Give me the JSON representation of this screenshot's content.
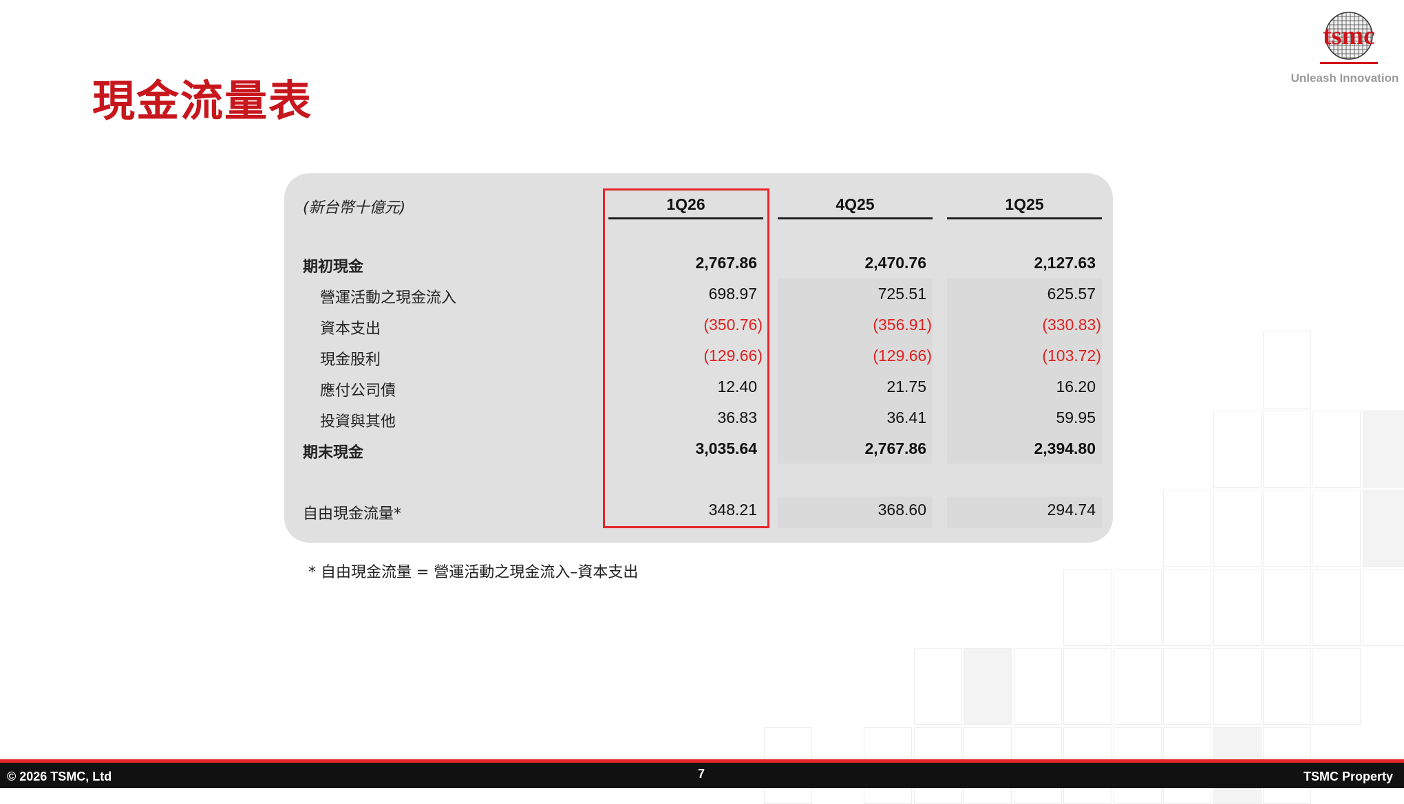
{
  "title": "現金流量表",
  "logo": {
    "text": "tsmc",
    "tagline": "Unleash Innovation"
  },
  "table": {
    "unit": "(新台幣十億元)",
    "columns": [
      "1Q26",
      "4Q25",
      "1Q25"
    ],
    "highlighted_column": "1Q26",
    "rows": [
      {
        "label": "期初現金",
        "bold": true,
        "values": [
          "2,767.86",
          "2,470.76",
          "2,127.63"
        ]
      },
      {
        "label": "營運活動之現金流入",
        "values": [
          "698.97",
          "725.51",
          "625.57"
        ]
      },
      {
        "label": "資本支出",
        "negative": true,
        "values": [
          "(350.76)",
          "(356.91)",
          "(330.83)"
        ]
      },
      {
        "label": "現金股利",
        "negative": true,
        "values": [
          "(129.66)",
          "(129.66)",
          "(103.72)"
        ]
      },
      {
        "label": "應付公司債",
        "values": [
          "12.40",
          "21.75",
          "16.20"
        ]
      },
      {
        "label": "投資與其他",
        "values": [
          "36.83",
          "36.41",
          "59.95"
        ]
      },
      {
        "label": "期末現金",
        "bold": true,
        "values": [
          "3,035.64",
          "2,767.86",
          "2,394.80"
        ]
      },
      {
        "label": "自由現金流量*",
        "values": [
          "348.21",
          "368.60",
          "294.74"
        ]
      }
    ]
  },
  "footnote": "* 自由現金流量 = 營運活動之現金流入–資本支出",
  "footer": {
    "copyright": "© 2026 TSMC, Ltd",
    "page": "7",
    "property": "TSMC Property"
  },
  "colors": {
    "accent": "#c8161d",
    "negative": "#e02020",
    "highlight_box": "#e4262b"
  }
}
